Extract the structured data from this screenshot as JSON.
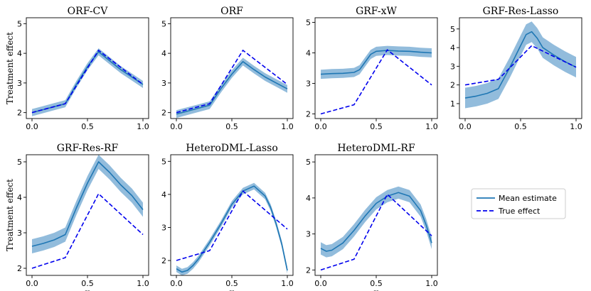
{
  "colors": {
    "mean": "#1f77b4",
    "band": "#7fb0d6",
    "true": "#0000ee"
  },
  "legend": {
    "mean_label": "Mean estimate",
    "true_label": "True effect",
    "placement": "right of bottom row"
  },
  "chart_data": [
    {
      "type": "line",
      "title": "ORF-CV",
      "xlim": [
        0,
        1
      ],
      "ylim": [
        1.8,
        5.2
      ],
      "xticks": [
        0.0,
        0.5,
        1.0
      ],
      "yticks": [
        2,
        3,
        4,
        5
      ],
      "xlabel": "",
      "ylabel": "Treatment effect",
      "series": [
        {
          "role": "true",
          "name": "True effect",
          "x": [
            0,
            0.3,
            0.6,
            1.0
          ],
          "y": [
            2.0,
            2.3,
            4.1,
            2.95
          ]
        },
        {
          "role": "mean",
          "name": "Mean estimate",
          "x": [
            0,
            0.1,
            0.2,
            0.3,
            0.4,
            0.5,
            0.6,
            0.7,
            0.8,
            0.9,
            1.0
          ],
          "y": [
            2.0,
            2.1,
            2.2,
            2.3,
            2.95,
            3.55,
            4.05,
            3.75,
            3.45,
            3.2,
            2.95
          ],
          "band": 0.12
        }
      ]
    },
    {
      "type": "line",
      "title": "ORF",
      "xlim": [
        0,
        1
      ],
      "ylim": [
        1.8,
        5.2
      ],
      "xticks": [
        0.0,
        0.5,
        1.0
      ],
      "yticks": [
        2,
        3,
        4,
        5
      ],
      "xlabel": "",
      "ylabel": "",
      "series": [
        {
          "role": "true",
          "name": "True effect",
          "x": [
            0,
            0.3,
            0.6,
            1.0
          ],
          "y": [
            2.0,
            2.3,
            4.1,
            2.95
          ]
        },
        {
          "role": "mean",
          "name": "Mean estimate",
          "x": [
            0,
            0.1,
            0.2,
            0.3,
            0.4,
            0.5,
            0.6,
            0.7,
            0.8,
            0.9,
            1.0
          ],
          "y": [
            1.95,
            2.05,
            2.15,
            2.25,
            2.8,
            3.3,
            3.72,
            3.45,
            3.2,
            3.0,
            2.8
          ],
          "band": 0.13
        }
      ]
    },
    {
      "type": "line",
      "title": "GRF-xW",
      "xlim": [
        0,
        1
      ],
      "ylim": [
        1.85,
        5.15
      ],
      "xticks": [
        0.0,
        0.5,
        1.0
      ],
      "yticks": [
        2,
        3,
        4,
        5
      ],
      "xlabel": "",
      "ylabel": "",
      "series": [
        {
          "role": "true",
          "name": "True effect",
          "x": [
            0,
            0.3,
            0.6,
            1.0
          ],
          "y": [
            2.0,
            2.3,
            4.1,
            2.95
          ]
        },
        {
          "role": "mean",
          "name": "Mean estimate",
          "x": [
            0,
            0.1,
            0.2,
            0.3,
            0.35,
            0.4,
            0.45,
            0.5,
            0.6,
            0.7,
            0.8,
            0.9,
            1.0
          ],
          "y": [
            3.3,
            3.32,
            3.33,
            3.36,
            3.45,
            3.7,
            3.95,
            4.05,
            4.08,
            4.06,
            4.05,
            4.02,
            4.0
          ],
          "band": 0.15
        }
      ]
    },
    {
      "type": "line",
      "title": "GRF-Res-Lasso",
      "xlim": [
        0,
        1
      ],
      "ylim": [
        0.2,
        5.6
      ],
      "xticks": [
        0.0,
        0.5,
        1.0
      ],
      "yticks": [
        1,
        2,
        3,
        4,
        5
      ],
      "xlabel": "",
      "ylabel": "",
      "series": [
        {
          "role": "true",
          "name": "True effect",
          "x": [
            0,
            0.3,
            0.6,
            1.0
          ],
          "y": [
            2.0,
            2.3,
            4.1,
            2.95
          ]
        },
        {
          "role": "mean",
          "name": "Mean estimate",
          "x": [
            0,
            0.1,
            0.2,
            0.3,
            0.4,
            0.5,
            0.55,
            0.6,
            0.65,
            0.7,
            0.8,
            0.9,
            1.0
          ],
          "y": [
            1.3,
            1.4,
            1.55,
            1.8,
            2.9,
            4.1,
            4.7,
            4.85,
            4.5,
            4.0,
            3.6,
            3.25,
            2.95
          ],
          "band": 0.55
        }
      ]
    },
    {
      "type": "line",
      "title": "GRF-Res-RF",
      "xlim": [
        0,
        1
      ],
      "ylim": [
        1.8,
        5.2
      ],
      "xticks": [
        0.0,
        0.5,
        1.0
      ],
      "yticks": [
        2,
        3,
        4,
        5
      ],
      "xlabel": "x",
      "ylabel": "Treatment effect",
      "series": [
        {
          "role": "true",
          "name": "True effect",
          "x": [
            0,
            0.3,
            0.6,
            1.0
          ],
          "y": [
            2.0,
            2.3,
            4.1,
            2.95
          ]
        },
        {
          "role": "mean",
          "name": "Mean estimate",
          "x": [
            0,
            0.1,
            0.2,
            0.3,
            0.4,
            0.5,
            0.6,
            0.7,
            0.8,
            0.9,
            1.0
          ],
          "y": [
            2.62,
            2.7,
            2.8,
            2.95,
            3.7,
            4.4,
            5.0,
            4.7,
            4.35,
            4.05,
            3.65
          ],
          "band": 0.2
        }
      ]
    },
    {
      "type": "line",
      "title": "HeteroDML-Lasso",
      "xlim": [
        0,
        1
      ],
      "ylim": [
        1.55,
        5.2
      ],
      "xticks": [
        0.0,
        0.5,
        1.0
      ],
      "yticks": [
        2,
        3,
        4,
        5
      ],
      "xlabel": "x",
      "ylabel": "",
      "series": [
        {
          "role": "true",
          "name": "True effect",
          "x": [
            0,
            0.3,
            0.6,
            1.0
          ],
          "y": [
            2.0,
            2.3,
            4.1,
            2.95
          ]
        },
        {
          "role": "mean",
          "name": "Mean estimate",
          "x": [
            0,
            0.05,
            0.1,
            0.15,
            0.2,
            0.3,
            0.4,
            0.5,
            0.6,
            0.7,
            0.8,
            0.85,
            0.9,
            0.95,
            1.0
          ],
          "y": [
            1.75,
            1.65,
            1.7,
            1.85,
            2.05,
            2.55,
            3.1,
            3.7,
            4.1,
            4.25,
            3.95,
            3.6,
            3.1,
            2.5,
            1.7
          ],
          "band": 0.1
        }
      ]
    },
    {
      "type": "line",
      "title": "HeteroDML-RF",
      "xlim": [
        0,
        1
      ],
      "ylim": [
        1.85,
        5.2
      ],
      "xticks": [
        0.0,
        0.5,
        1.0
      ],
      "yticks": [
        2,
        3,
        4,
        5
      ],
      "xlabel": "x",
      "ylabel": "",
      "series": [
        {
          "role": "true",
          "name": "True effect",
          "x": [
            0,
            0.3,
            0.6,
            1.0
          ],
          "y": [
            2.0,
            2.3,
            4.1,
            2.95
          ]
        },
        {
          "role": "mean",
          "name": "Mean estimate",
          "x": [
            0,
            0.05,
            0.1,
            0.2,
            0.3,
            0.4,
            0.5,
            0.6,
            0.7,
            0.8,
            0.9,
            0.95,
            1.0
          ],
          "y": [
            2.6,
            2.52,
            2.55,
            2.75,
            3.1,
            3.5,
            3.85,
            4.05,
            4.15,
            4.05,
            3.65,
            3.25,
            2.75
          ],
          "band": 0.17
        }
      ]
    }
  ]
}
